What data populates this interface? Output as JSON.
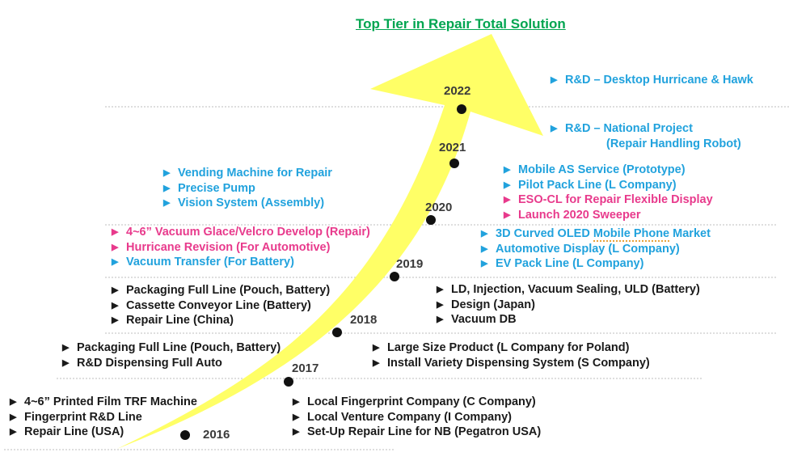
{
  "title": "Top Tier in Repair Total Solution",
  "colors": {
    "arrow": "#ffff66",
    "blue": "#21a2dd",
    "pink": "#e83a8c",
    "green": "#00a550",
    "black": "#1a1a1a"
  },
  "icons": {
    "bullet": "triangle-right"
  },
  "years": [
    "2016",
    "2017",
    "2018",
    "2019",
    "2020",
    "2021",
    "2022"
  ],
  "groups": {
    "y2016_left": [
      "4~6” Printed Film TRF Machine",
      "Fingerprint R&D Line",
      "Repair Line (USA)"
    ],
    "y2016_right": [
      "Local Fingerprint Company (C Company)",
      "Local Venture Company (I Company)",
      "Set-Up Repair Line for NB (Pegatron USA)"
    ],
    "y2017_left": [
      "Packaging Full Line (Pouch, Battery)",
      "R&D Dispensing Full Auto"
    ],
    "y2017_right": [
      "Large Size Product (L Company for Poland)",
      "Install Variety Dispensing System (S Company)"
    ],
    "y2018_left": [
      "Packaging Full Line (Pouch, Battery)",
      "Cassette Conveyor Line (Battery)",
      "Repair Line (China)"
    ],
    "y2018_right": [
      "LD, Injection, Vacuum Sealing, ULD (Battery)",
      "Design (Japan)",
      "Vacuum DB"
    ],
    "y2019_left": [
      "4~6” Vacuum Glace/Velcro Develop (Repair)",
      "Hurricane Revision (For Automotive)",
      "Vacuum Transfer (For Battery)"
    ],
    "y2019_right_1": "3D Curved OLED",
    "y2019_right_1b": "Mobile Phone",
    "y2019_right_1c": "Market",
    "y2019_right": [
      "Automotive Display (L Company)",
      "EV Pack Line (L Company)"
    ],
    "y2020_left": [
      "Vending Machine for Repair",
      "Precise Pump",
      "Vision System (Assembly)"
    ],
    "y2021_right": [
      "Mobile AS Service (Prototype)",
      "Pilot Pack Line (L Company)",
      "ESO-CL for Repair Flexible Display",
      "Launch 2020 Sweeper"
    ],
    "y2022_right_1": "R&D – Desktop Hurricane & Hawk",
    "y2022_right_2": "R&D – National Project",
    "y2022_right_3": "(Repair Handling Robot)"
  }
}
